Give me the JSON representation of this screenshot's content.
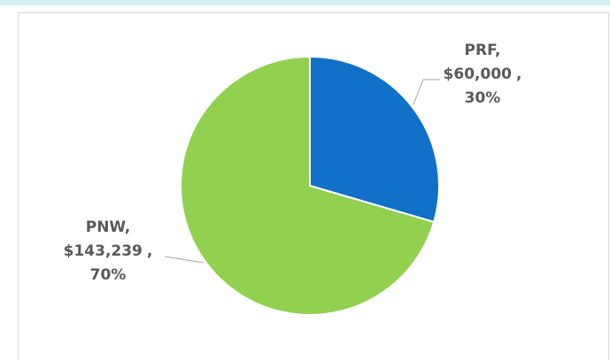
{
  "chart_data": {
    "type": "pie",
    "categories": [
      "PRF",
      "PNW"
    ],
    "values": [
      60000,
      143239
    ],
    "value_labels": [
      "$60,000",
      "$143,239"
    ],
    "percent_labels": [
      "30%",
      "70%"
    ],
    "separator": ",",
    "colors": [
      "#1170c8",
      "#92d050"
    ]
  }
}
